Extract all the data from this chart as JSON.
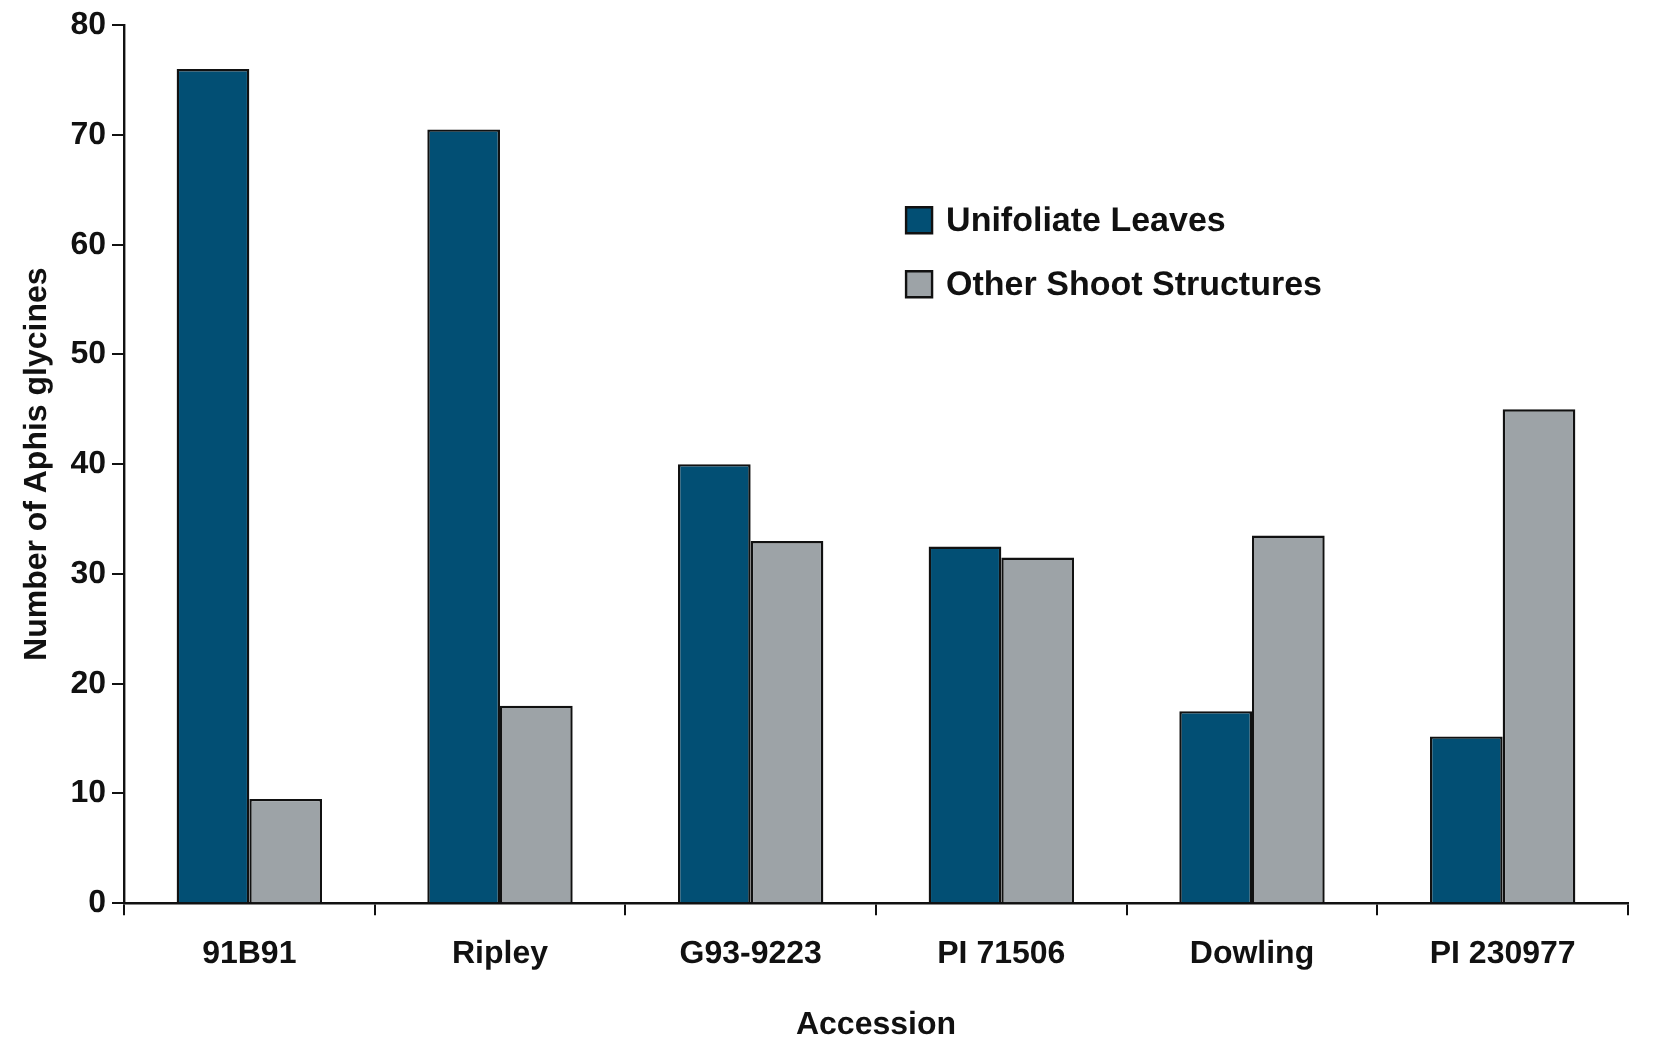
{
  "chart_data": {
    "type": "bar",
    "xlabel": "Accession",
    "ylabel": "Number of Aphis glycines",
    "categories": [
      "91B91",
      "Ripley",
      "G93-9223",
      "PI 71506",
      "Dowling",
      "PI 230977"
    ],
    "series": [
      {
        "name": "Unifoliate Leaves",
        "color": "#024f74",
        "values": [
          76,
          70.5,
          40,
          32.5,
          17.5,
          15.2
        ]
      },
      {
        "name": "Other Shoot Structures",
        "color": "#9da3a7",
        "values": [
          9.5,
          18,
          33,
          31.5,
          33.5,
          45
        ]
      }
    ],
    "ylim": [
      0,
      80
    ],
    "yticks": [
      0,
      10,
      20,
      30,
      40,
      50,
      60,
      70,
      80
    ],
    "grid": false,
    "legend": "top right"
  }
}
